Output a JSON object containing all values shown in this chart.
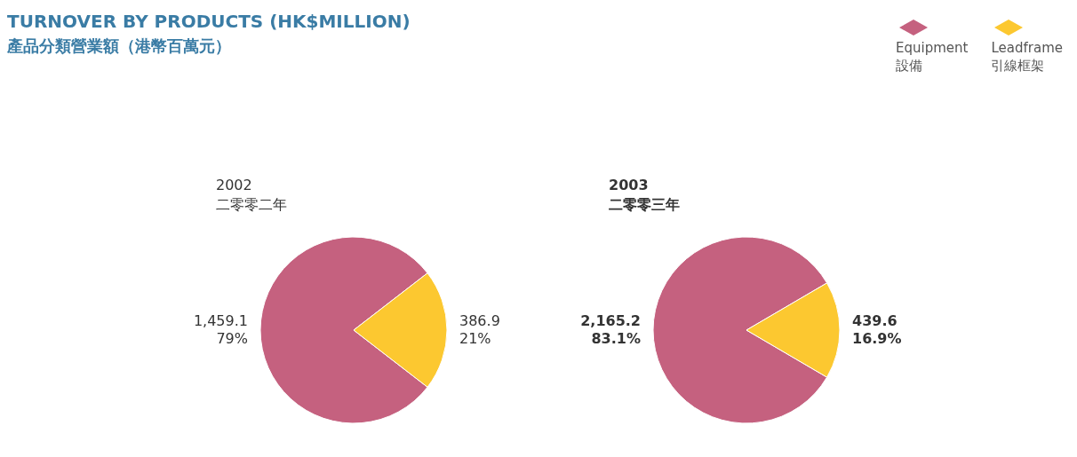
{
  "chart_data": [
    {
      "type": "pie",
      "title": "TURNOVER BY PRODUCTS (HK$MILLION)",
      "subtitle": "產品分類營業額（港幣百萬元）",
      "annotations": [
        "2002",
        "二零零二年"
      ],
      "categories": [
        "Equipment\n設備",
        "Leadframe\n引線框架"
      ],
      "values": [
        1459.1,
        386.9
      ],
      "colors": [
        "#c5617f",
        "#fcc830"
      ],
      "value_labels": [
        "1,459.1\n79%",
        "386.9\n21%"
      ],
      "legend": "top right"
    },
    {
      "type": "pie",
      "annotations": [
        "2003",
        "二零零三年"
      ],
      "values": [
        2165.2,
        439.6
      ],
      "colors": [
        "#c5617f",
        "#fcc830"
      ],
      "value_labels": [
        "2,165.2\n83.1%",
        "439.6\n16.9%"
      ]
    }
  ]
}
